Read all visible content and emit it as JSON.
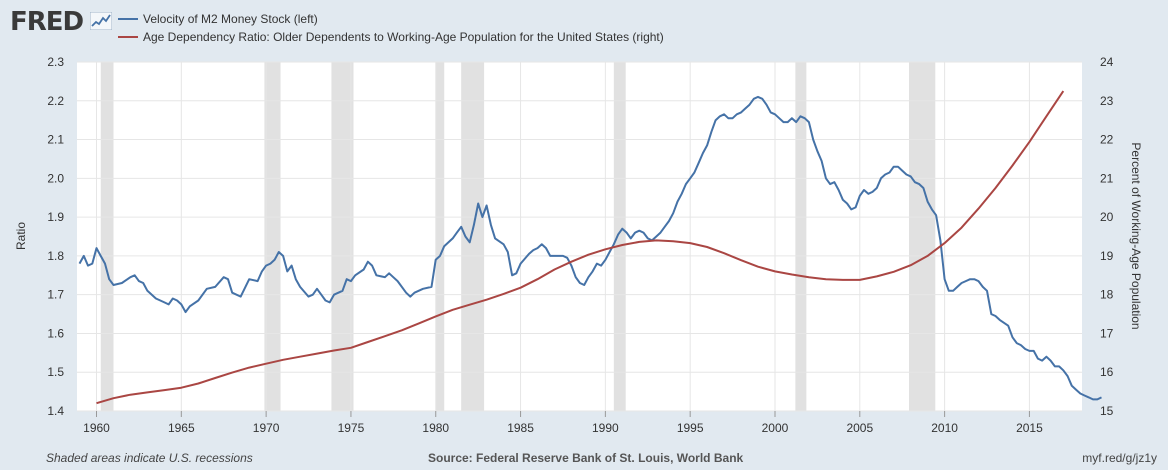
{
  "header": {
    "logo_text": "FRED",
    "logo_icon": "sparkline-chart-icon"
  },
  "footer": {
    "left": "Shaded areas indicate U.S. recessions",
    "source": "Source: Federal Reserve Bank of St. Louis, World Bank",
    "link": "myf.red/g/jz1y"
  },
  "chart_data": {
    "type": "line",
    "background": "#ffffff",
    "grid": true,
    "recession_shading": "#e1e1e1",
    "x_ticks": [
      1960,
      1965,
      1970,
      1975,
      1980,
      1985,
      1990,
      1995,
      2000,
      2005,
      2010,
      2015
    ],
    "xlim": [
      1958.85,
      2018.1
    ],
    "left_axis": {
      "label": "Ratio",
      "ylim": [
        1.4,
        2.3
      ],
      "ticks": [
        "1.4",
        "1.5",
        "1.6",
        "1.7",
        "1.8",
        "1.9",
        "2.0",
        "2.1",
        "2.2",
        "2.3"
      ]
    },
    "right_axis": {
      "label": "Percent of Working-Age Population",
      "ylim": [
        15,
        24
      ],
      "ticks": [
        "15",
        "16",
        "17",
        "18",
        "19",
        "20",
        "21",
        "22",
        "23",
        "24"
      ]
    },
    "recessions": [
      [
        1960.25,
        1961.0
      ],
      [
        1969.9,
        1970.85
      ],
      [
        1973.85,
        1975.15
      ],
      [
        1980.0,
        1980.5
      ],
      [
        1981.5,
        1982.85
      ],
      [
        1990.5,
        1991.2
      ],
      [
        2001.2,
        2001.85
      ],
      [
        2007.9,
        2009.45
      ]
    ],
    "series": [
      {
        "name": "Velocity of M2 Money Stock (left)",
        "axis": "left",
        "color": "#4572a7",
        "points": [
          [
            1959.0,
            1.78
          ],
          [
            1959.25,
            1.8
          ],
          [
            1959.5,
            1.775
          ],
          [
            1959.75,
            1.78
          ],
          [
            1960.0,
            1.82
          ],
          [
            1960.25,
            1.8
          ],
          [
            1960.5,
            1.78
          ],
          [
            1960.75,
            1.74
          ],
          [
            1961.0,
            1.725
          ],
          [
            1961.5,
            1.73
          ],
          [
            1962.0,
            1.745
          ],
          [
            1962.25,
            1.75
          ],
          [
            1962.5,
            1.735
          ],
          [
            1962.75,
            1.73
          ],
          [
            1963.0,
            1.71
          ],
          [
            1963.5,
            1.69
          ],
          [
            1964.0,
            1.68
          ],
          [
            1964.25,
            1.675
          ],
          [
            1964.5,
            1.69
          ],
          [
            1964.75,
            1.685
          ],
          [
            1965.0,
            1.675
          ],
          [
            1965.25,
            1.655
          ],
          [
            1965.5,
            1.67
          ],
          [
            1966.0,
            1.685
          ],
          [
            1966.5,
            1.715
          ],
          [
            1967.0,
            1.72
          ],
          [
            1967.5,
            1.745
          ],
          [
            1967.75,
            1.74
          ],
          [
            1968.0,
            1.705
          ],
          [
            1968.5,
            1.695
          ],
          [
            1969.0,
            1.74
          ],
          [
            1969.5,
            1.735
          ],
          [
            1969.75,
            1.76
          ],
          [
            1970.0,
            1.775
          ],
          [
            1970.25,
            1.78
          ],
          [
            1970.5,
            1.79
          ],
          [
            1970.75,
            1.81
          ],
          [
            1971.0,
            1.8
          ],
          [
            1971.25,
            1.76
          ],
          [
            1971.5,
            1.775
          ],
          [
            1971.75,
            1.74
          ],
          [
            1972.0,
            1.72
          ],
          [
            1972.5,
            1.695
          ],
          [
            1972.75,
            1.7
          ],
          [
            1973.0,
            1.715
          ],
          [
            1973.25,
            1.7
          ],
          [
            1973.5,
            1.685
          ],
          [
            1973.75,
            1.68
          ],
          [
            1974.0,
            1.7
          ],
          [
            1974.5,
            1.71
          ],
          [
            1974.75,
            1.74
          ],
          [
            1975.0,
            1.735
          ],
          [
            1975.25,
            1.75
          ],
          [
            1975.75,
            1.765
          ],
          [
            1976.0,
            1.785
          ],
          [
            1976.25,
            1.775
          ],
          [
            1976.5,
            1.75
          ],
          [
            1977.0,
            1.745
          ],
          [
            1977.25,
            1.755
          ],
          [
            1977.5,
            1.745
          ],
          [
            1977.75,
            1.735
          ],
          [
            1978.25,
            1.705
          ],
          [
            1978.5,
            1.695
          ],
          [
            1978.75,
            1.705
          ],
          [
            1979.25,
            1.715
          ],
          [
            1979.75,
            1.72
          ],
          [
            1980.0,
            1.79
          ],
          [
            1980.25,
            1.8
          ],
          [
            1980.5,
            1.825
          ],
          [
            1980.75,
            1.835
          ],
          [
            1981.0,
            1.845
          ],
          [
            1981.25,
            1.86
          ],
          [
            1981.5,
            1.875
          ],
          [
            1981.75,
            1.85
          ],
          [
            1982.0,
            1.835
          ],
          [
            1982.25,
            1.88
          ],
          [
            1982.5,
            1.935
          ],
          [
            1982.75,
            1.9
          ],
          [
            1983.0,
            1.93
          ],
          [
            1983.25,
            1.88
          ],
          [
            1983.5,
            1.845
          ],
          [
            1984.0,
            1.83
          ],
          [
            1984.25,
            1.81
          ],
          [
            1984.5,
            1.75
          ],
          [
            1984.75,
            1.755
          ],
          [
            1985.0,
            1.78
          ],
          [
            1985.5,
            1.805
          ],
          [
            1985.75,
            1.815
          ],
          [
            1986.0,
            1.82
          ],
          [
            1986.25,
            1.83
          ],
          [
            1986.5,
            1.82
          ],
          [
            1986.75,
            1.8
          ],
          [
            1987.0,
            1.8
          ],
          [
            1987.5,
            1.8
          ],
          [
            1987.75,
            1.795
          ],
          [
            1988.0,
            1.775
          ],
          [
            1988.25,
            1.745
          ],
          [
            1988.5,
            1.73
          ],
          [
            1988.75,
            1.725
          ],
          [
            1989.0,
            1.745
          ],
          [
            1989.25,
            1.76
          ],
          [
            1989.5,
            1.78
          ],
          [
            1989.75,
            1.775
          ],
          [
            1990.0,
            1.79
          ],
          [
            1990.25,
            1.81
          ],
          [
            1990.5,
            1.83
          ],
          [
            1990.75,
            1.855
          ],
          [
            1991.0,
            1.87
          ],
          [
            1991.25,
            1.86
          ],
          [
            1991.5,
            1.845
          ],
          [
            1991.75,
            1.86
          ],
          [
            1992.0,
            1.865
          ],
          [
            1992.25,
            1.86
          ],
          [
            1992.5,
            1.845
          ],
          [
            1992.75,
            1.84
          ],
          [
            1993.0,
            1.85
          ],
          [
            1993.25,
            1.86
          ],
          [
            1993.5,
            1.875
          ],
          [
            1993.75,
            1.89
          ],
          [
            1994.0,
            1.91
          ],
          [
            1994.25,
            1.94
          ],
          [
            1994.5,
            1.96
          ],
          [
            1994.75,
            1.985
          ],
          [
            1995.0,
            2.0
          ],
          [
            1995.25,
            2.015
          ],
          [
            1995.5,
            2.04
          ],
          [
            1995.75,
            2.065
          ],
          [
            1996.0,
            2.085
          ],
          [
            1996.25,
            2.12
          ],
          [
            1996.5,
            2.15
          ],
          [
            1996.75,
            2.16
          ],
          [
            1997.0,
            2.165
          ],
          [
            1997.25,
            2.155
          ],
          [
            1997.5,
            2.155
          ],
          [
            1997.75,
            2.165
          ],
          [
            1998.0,
            2.17
          ],
          [
            1998.25,
            2.18
          ],
          [
            1998.5,
            2.19
          ],
          [
            1998.75,
            2.205
          ],
          [
            1999.0,
            2.21
          ],
          [
            1999.25,
            2.205
          ],
          [
            1999.5,
            2.19
          ],
          [
            1999.75,
            2.17
          ],
          [
            2000.0,
            2.165
          ],
          [
            2000.25,
            2.155
          ],
          [
            2000.5,
            2.145
          ],
          [
            2000.75,
            2.145
          ],
          [
            2001.0,
            2.155
          ],
          [
            2001.25,
            2.145
          ],
          [
            2001.5,
            2.16
          ],
          [
            2001.75,
            2.155
          ],
          [
            2002.0,
            2.145
          ],
          [
            2002.25,
            2.1
          ],
          [
            2002.5,
            2.07
          ],
          [
            2002.75,
            2.045
          ],
          [
            2003.0,
            2.0
          ],
          [
            2003.25,
            1.985
          ],
          [
            2003.5,
            1.99
          ],
          [
            2003.75,
            1.97
          ],
          [
            2004.0,
            1.945
          ],
          [
            2004.25,
            1.935
          ],
          [
            2004.5,
            1.92
          ],
          [
            2004.75,
            1.925
          ],
          [
            2005.0,
            1.955
          ],
          [
            2005.25,
            1.97
          ],
          [
            2005.5,
            1.96
          ],
          [
            2005.75,
            1.965
          ],
          [
            2006.0,
            1.975
          ],
          [
            2006.25,
            2.0
          ],
          [
            2006.5,
            2.01
          ],
          [
            2006.75,
            2.015
          ],
          [
            2007.0,
            2.03
          ],
          [
            2007.25,
            2.03
          ],
          [
            2007.5,
            2.02
          ],
          [
            2007.75,
            2.01
          ],
          [
            2008.0,
            2.005
          ],
          [
            2008.25,
            1.99
          ],
          [
            2008.5,
            1.985
          ],
          [
            2008.75,
            1.975
          ],
          [
            2009.0,
            1.94
          ],
          [
            2009.25,
            1.92
          ],
          [
            2009.5,
            1.905
          ],
          [
            2009.75,
            1.84
          ],
          [
            2010.0,
            1.74
          ],
          [
            2010.25,
            1.71
          ],
          [
            2010.5,
            1.71
          ],
          [
            2010.75,
            1.72
          ],
          [
            2011.0,
            1.73
          ],
          [
            2011.25,
            1.735
          ],
          [
            2011.5,
            1.74
          ],
          [
            2011.75,
            1.74
          ],
          [
            2012.0,
            1.735
          ],
          [
            2012.25,
            1.72
          ],
          [
            2012.5,
            1.71
          ],
          [
            2012.75,
            1.65
          ],
          [
            2013.0,
            1.645
          ],
          [
            2013.25,
            1.635
          ],
          [
            2013.75,
            1.62
          ],
          [
            2014.0,
            1.59
          ],
          [
            2014.25,
            1.575
          ],
          [
            2014.5,
            1.57
          ],
          [
            2014.75,
            1.56
          ],
          [
            2015.0,
            1.555
          ],
          [
            2015.25,
            1.555
          ],
          [
            2015.5,
            1.535
          ],
          [
            2015.75,
            1.53
          ],
          [
            2016.0,
            1.54
          ],
          [
            2016.25,
            1.53
          ],
          [
            2016.5,
            1.515
          ],
          [
            2016.75,
            1.515
          ],
          [
            2017.0,
            1.505
          ],
          [
            2017.25,
            1.49
          ],
          [
            2017.5,
            1.465
          ],
          [
            2017.75,
            1.455
          ],
          [
            2018.0,
            1.445
          ],
          [
            2018.25,
            1.44
          ],
          [
            2018.5,
            1.435
          ],
          [
            2018.75,
            1.43
          ],
          [
            2019.0,
            1.43
          ],
          [
            2019.25,
            1.435
          ]
        ]
      },
      {
        "name": "Age Dependency Ratio: Older Dependents to Working-Age Population for the United States (right)",
        "axis": "right",
        "color": "#aa4643",
        "points": [
          [
            1960,
            15.2
          ],
          [
            1961,
            15.33
          ],
          [
            1962,
            15.42
          ],
          [
            1963,
            15.48
          ],
          [
            1964,
            15.54
          ],
          [
            1965,
            15.6
          ],
          [
            1966,
            15.71
          ],
          [
            1967,
            15.85
          ],
          [
            1968,
            15.99
          ],
          [
            1969,
            16.12
          ],
          [
            1970,
            16.22
          ],
          [
            1971,
            16.32
          ],
          [
            1972,
            16.4
          ],
          [
            1973,
            16.48
          ],
          [
            1974,
            16.56
          ],
          [
            1975,
            16.63
          ],
          [
            1976,
            16.78
          ],
          [
            1977,
            16.93
          ],
          [
            1978,
            17.08
          ],
          [
            1979,
            17.26
          ],
          [
            1980,
            17.44
          ],
          [
            1981,
            17.61
          ],
          [
            1982,
            17.74
          ],
          [
            1983,
            17.87
          ],
          [
            1984,
            18.02
          ],
          [
            1985,
            18.18
          ],
          [
            1986,
            18.4
          ],
          [
            1987,
            18.65
          ],
          [
            1988,
            18.85
          ],
          [
            1989,
            19.03
          ],
          [
            1990,
            19.17
          ],
          [
            1991,
            19.28
          ],
          [
            1992,
            19.36
          ],
          [
            1993,
            19.4
          ],
          [
            1994,
            19.38
          ],
          [
            1995,
            19.33
          ],
          [
            1996,
            19.23
          ],
          [
            1997,
            19.07
          ],
          [
            1998,
            18.89
          ],
          [
            1999,
            18.72
          ],
          [
            2000,
            18.6
          ],
          [
            2001,
            18.52
          ],
          [
            2002,
            18.45
          ],
          [
            2003,
            18.4
          ],
          [
            2004,
            18.38
          ],
          [
            2005,
            18.38
          ],
          [
            2006,
            18.47
          ],
          [
            2007,
            18.59
          ],
          [
            2008,
            18.76
          ],
          [
            2009,
            19.0
          ],
          [
            2010,
            19.33
          ],
          [
            2011,
            19.73
          ],
          [
            2012,
            20.22
          ],
          [
            2013,
            20.75
          ],
          [
            2014,
            21.33
          ],
          [
            2015,
            21.94
          ],
          [
            2016,
            22.6
          ],
          [
            2017,
            23.25
          ]
        ]
      }
    ]
  }
}
